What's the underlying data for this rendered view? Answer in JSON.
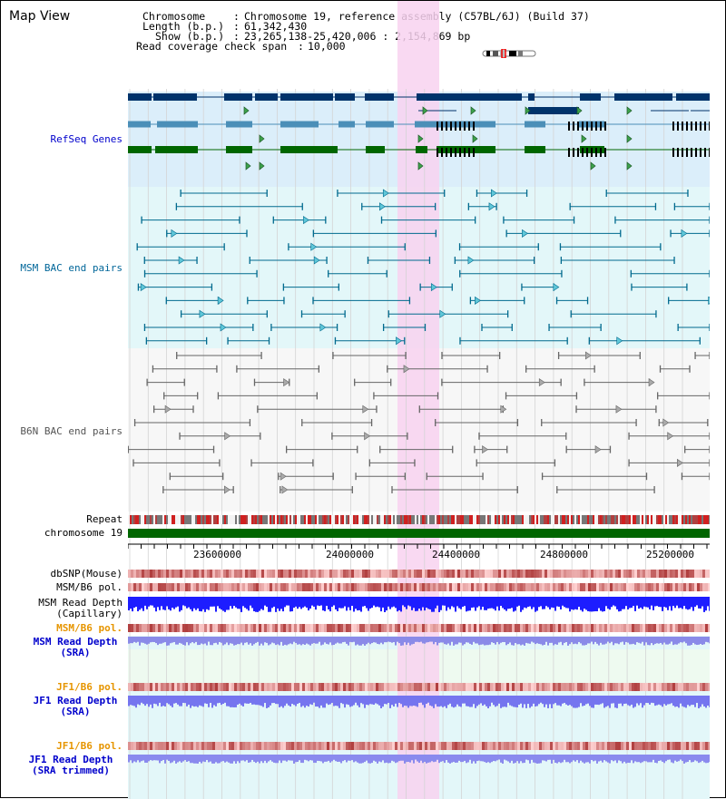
{
  "view_title": "Map View",
  "header": {
    "chromosome_key": "Chromosome",
    "chromosome_val": "Chromosome 19, reference assembly (C57BL/6J) (Build 37)",
    "length_key": "Length (b.p.)",
    "length_val": "61,342,430",
    "show_key": "Show (b.p.)",
    "show_val": "23,265,138-25,420,006 : 2,154,869 bp",
    "coverage_key": "Read coverage check span",
    "coverage_val": "10,000",
    "sep": ":"
  },
  "tracks": {
    "refseq": {
      "label": "RefSeq Genes",
      "color": "#0000cc"
    },
    "msm_bac": {
      "label": "MSM BAC end pairs",
      "color": "#006699"
    },
    "b6n_bac": {
      "label": "B6N BAC end pairs",
      "color": "#555555"
    },
    "repeat": {
      "label": "Repeat"
    },
    "chromosome": {
      "label": "chromosome 19"
    },
    "dbsnp": {
      "label": "dbSNP(Mouse)"
    },
    "msm_b6_pol": {
      "label": "MSM/B6 pol."
    },
    "msm_depth_cap": {
      "label": "MSM Read Depth\n(Capillary)"
    },
    "msm_b6_pol2": {
      "label": "MSM/B6 pol.",
      "color": "#e69500"
    },
    "msm_depth_sra": {
      "label": "MSM Read Depth\n(SRA)",
      "color": "#0000cc"
    },
    "jf1_b6_pol": {
      "label": "JF1/B6 pol.",
      "color": "#e69500"
    },
    "jf1_depth_sra": {
      "label": "JF1 Read Depth\n(SRA)",
      "color": "#0000cc"
    },
    "jf1_b6_pol2": {
      "label": "JF1/B6 pol.",
      "color": "#e69500"
    },
    "jf1_depth_trim": {
      "label": "JF1 Read Depth\n(SRA trimmed)",
      "color": "#0000cc"
    }
  },
  "ruler": {
    "ticks": [
      "23600000",
      "24000000",
      "24400000",
      "24800000",
      "25200000"
    ]
  },
  "colors": {
    "refseq_dark": "#00336b",
    "refseq_mid": "#4b8fb8",
    "refseq_green": "#006600",
    "highlight": "#f8d2f0",
    "refseq_bg": "#dbeefa",
    "msm_bg": "#e3f7f9",
    "b6n_bg": "#f7f7f7"
  }
}
